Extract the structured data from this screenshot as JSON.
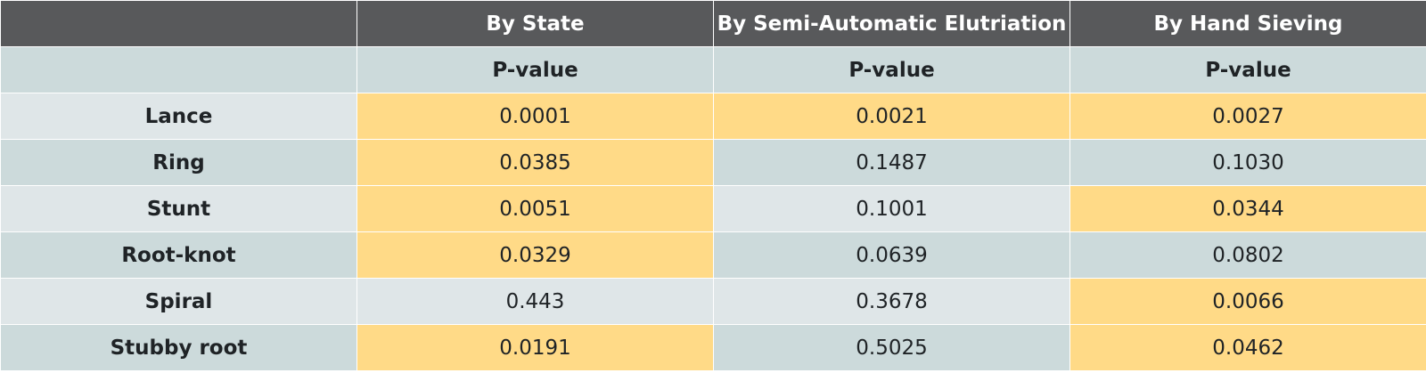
{
  "columns": [
    "By State",
    "By Semi-Automatic Elutriation",
    "By Hand Sieving"
  ],
  "subheader": [
    "P-value",
    "P-value",
    "P-value"
  ],
  "colors": {
    "header_bg": "#58595b",
    "row_light": "#dfe6e8",
    "row_dark": "#ccdadb",
    "highlight": "#ffda87"
  },
  "rows": [
    {
      "label": "Lance",
      "values": [
        "0.0001",
        "0.0021",
        "0.0027"
      ],
      "highlight": [
        true,
        true,
        true
      ]
    },
    {
      "label": "Ring",
      "values": [
        "0.0385",
        "0.1487",
        "0.1030"
      ],
      "highlight": [
        true,
        false,
        false
      ]
    },
    {
      "label": "Stunt",
      "values": [
        "0.0051",
        "0.1001",
        "0.0344"
      ],
      "highlight": [
        true,
        false,
        true
      ]
    },
    {
      "label": "Root-knot",
      "values": [
        "0.0329",
        "0.0639",
        "0.0802"
      ],
      "highlight": [
        true,
        false,
        false
      ]
    },
    {
      "label": "Spiral",
      "values": [
        "0.443",
        "0.3678",
        "0.0066"
      ],
      "highlight": [
        false,
        false,
        true
      ]
    },
    {
      "label": "Stubby root",
      "values": [
        "0.0191",
        "0.5025",
        "0.0462"
      ],
      "highlight": [
        true,
        false,
        true
      ]
    }
  ]
}
